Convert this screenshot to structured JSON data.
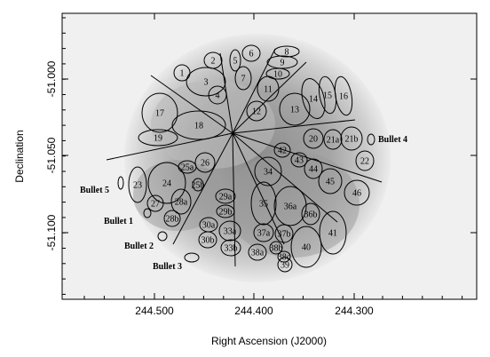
{
  "axes": {
    "xlabel": "Right Ascension (J2000)",
    "ylabel": "Declination",
    "xticks": [
      "244.500",
      "244.400",
      "244.300"
    ],
    "yticks": [
      "-51.000",
      "-51.050",
      "-51.100"
    ]
  },
  "regions": [
    "1",
    "2",
    "3",
    "4",
    "5",
    "6",
    "7",
    "8",
    "9",
    "10",
    "11",
    "12",
    "13",
    "14",
    "15",
    "16",
    "17",
    "18",
    "19",
    "20",
    "21a",
    "21b",
    "22",
    "23",
    "24",
    "25a",
    "25b",
    "26",
    "27",
    "28a",
    "28b",
    "29a",
    "29b",
    "30a",
    "30b",
    "33a",
    "33b",
    "34",
    "35",
    "36a",
    "36b",
    "37a",
    "37b",
    "38a",
    "38b",
    "38c",
    "39",
    "40",
    "41",
    "42",
    "43",
    "44",
    "45",
    "46"
  ],
  "bullets": [
    "Bullet 1",
    "Bullet 2",
    "Bullet 3",
    "Bullet 4",
    "Bullet 5"
  ]
}
